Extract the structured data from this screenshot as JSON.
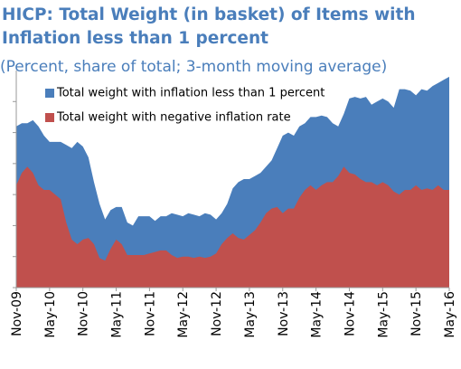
{
  "chart_data": {
    "type": "area",
    "title": "HICP: Total Weight (in basket) of Items with Inflation less than 1 percent",
    "subtitle": "(Percent, share of total; 3-month moving average)",
    "categories": [
      "Nov-09",
      "Dec-09",
      "Jan-10",
      "Feb-10",
      "Mar-10",
      "Apr-10",
      "May-10",
      "Jun-10",
      "Jul-10",
      "Aug-10",
      "Sep-10",
      "Oct-10",
      "Nov-10",
      "Dec-10",
      "Jan-11",
      "Feb-11",
      "Mar-11",
      "Apr-11",
      "May-11",
      "Jun-11",
      "Jul-11",
      "Aug-11",
      "Sep-11",
      "Oct-11",
      "Nov-11",
      "Dec-11",
      "Jan-12",
      "Feb-12",
      "Mar-12",
      "Apr-12",
      "May-12",
      "Jun-12",
      "Jul-12",
      "Aug-12",
      "Sep-12",
      "Oct-12",
      "Nov-12",
      "Dec-12",
      "Jan-13",
      "Feb-13",
      "Mar-13",
      "Apr-13",
      "May-13",
      "Jun-13",
      "Jul-13",
      "Aug-13",
      "Sep-13",
      "Oct-13",
      "Nov-13",
      "Dec-13",
      "Jan-14",
      "Feb-14",
      "Mar-14",
      "Apr-14",
      "May-14",
      "Jun-14",
      "Jul-14",
      "Aug-14",
      "Sep-14",
      "Oct-14",
      "Nov-14",
      "Dec-14",
      "Jan-15",
      "Feb-15",
      "Mar-15",
      "Apr-15",
      "May-15",
      "Jun-15",
      "Jul-15",
      "Aug-15",
      "Sep-15",
      "Oct-15",
      "Nov-15",
      "Dec-15",
      "Jan-16",
      "Feb-16",
      "Mar-16",
      "Apr-16",
      "May-16"
    ],
    "xtick_every": 6,
    "series": [
      {
        "name": "Total weight with inflation less than 1 percent",
        "color": "#4a7ebb",
        "values": [
          52,
          53,
          53,
          54,
          52,
          49,
          47,
          47,
          47,
          46,
          45,
          47,
          45.5,
          42,
          34,
          27,
          22,
          25,
          26,
          26,
          21,
          20,
          23,
          23,
          23,
          21.5,
          23,
          23,
          24,
          23.5,
          23,
          24,
          23.5,
          23,
          24,
          23.5,
          22,
          24,
          27,
          32,
          34,
          35,
          35,
          36,
          37,
          39,
          41,
          45,
          49,
          50,
          49,
          52,
          53,
          55,
          55,
          55.5,
          55,
          53,
          52,
          56,
          61,
          61.5,
          61,
          61.5,
          59,
          60,
          61,
          60,
          58,
          64,
          64,
          63.5,
          62,
          64,
          63.5,
          65,
          66,
          67,
          68
        ]
      },
      {
        "name": "Total weight with negative inflation rate",
        "color": "#c0504d",
        "values": [
          33,
          37,
          39,
          37,
          33,
          31.5,
          31.5,
          30,
          28.5,
          21,
          15.5,
          14,
          15.5,
          16,
          14,
          9.5,
          8.7,
          12.5,
          15.5,
          14,
          10.5,
          10.5,
          10.5,
          10.5,
          11,
          11.5,
          12,
          12,
          10.5,
          9.6,
          10,
          10,
          9.6,
          10,
          9.6,
          10,
          11,
          14,
          16,
          17.5,
          16,
          15.5,
          17,
          18.5,
          21,
          24,
          25.5,
          26,
          24,
          25.5,
          25.5,
          29,
          31.5,
          33,
          31.5,
          33,
          34,
          34,
          36,
          39,
          37,
          36.5,
          35,
          34,
          34,
          33,
          34,
          33,
          31,
          30,
          31.5,
          31.5,
          33,
          31.5,
          32,
          31.5,
          33,
          31.5,
          31.5
        ]
      }
    ],
    "ylim": [
      0,
      70
    ],
    "yticks": [
      0,
      10,
      20,
      30,
      40,
      50,
      60
    ],
    "legend": "upper left"
  }
}
